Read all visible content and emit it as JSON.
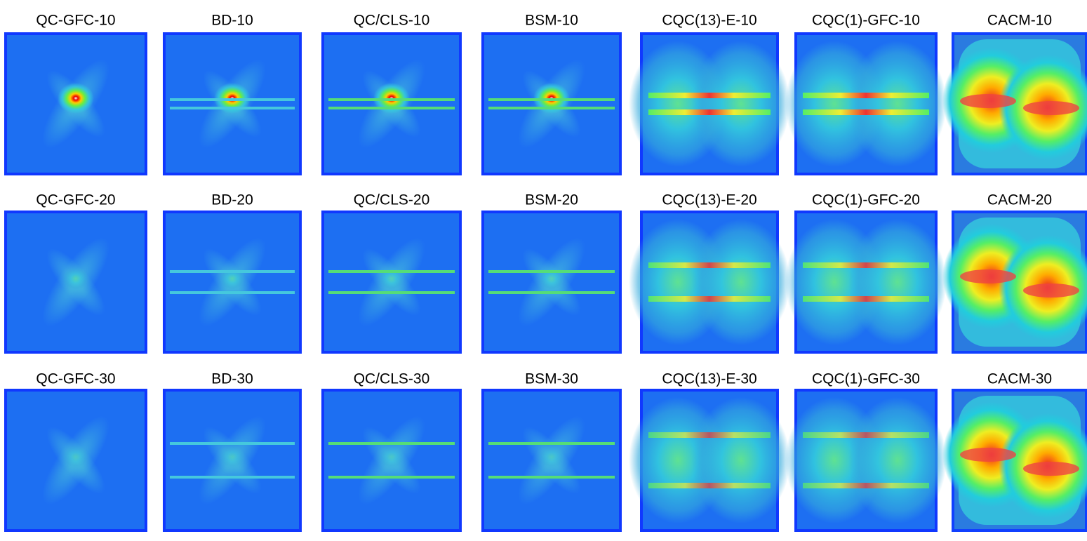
{
  "panels": [
    [
      "QC-GFC-10",
      "BD-10",
      "QC/CLS-10",
      "BSM-10",
      "CQC(13)-E-10",
      "CQC(1)-GFC-10",
      "CACM-10"
    ],
    [
      "QC-GFC-20",
      "BD-20",
      "QC/CLS-20",
      "BSM-20",
      "CQC(13)-E-20",
      "CQC(1)-GFC-20",
      "CACM-20"
    ],
    [
      "QC-GFC-30",
      "BD-30",
      "QC/CLS-30",
      "BSM-30",
      "CQC(13)-E-30",
      "CQC(1)-GFC-30",
      "CACM-30"
    ]
  ]
}
